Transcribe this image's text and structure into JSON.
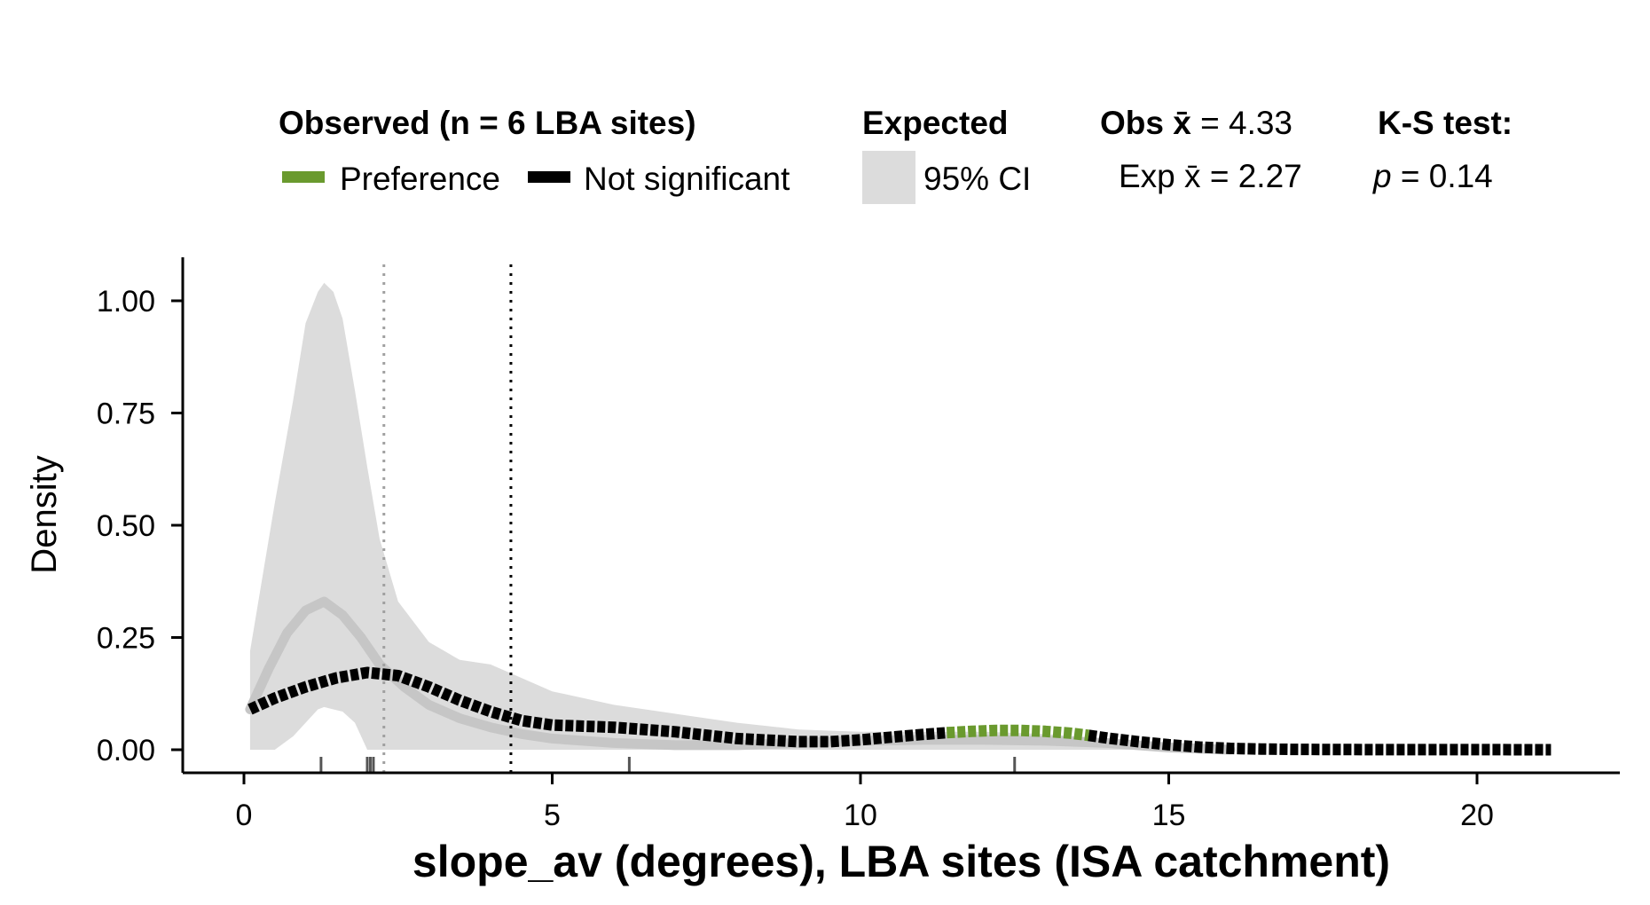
{
  "chart_data": {
    "type": "area",
    "xlabel": "slope_av (degrees), LBA sites (ISA catchment)",
    "ylabel": "Density",
    "xlim": [
      -1,
      22.5
    ],
    "ylim": [
      -0.05,
      1.1
    ],
    "x_ticks": [
      "0",
      "5",
      "10",
      "15",
      "20"
    ],
    "y_ticks": [
      "0.00",
      "0.25",
      "0.50",
      "0.75",
      "1.00"
    ],
    "grid": false,
    "legend_position": "top",
    "legend": {
      "observed_title": "Observed (n = 6 LBA sites)",
      "preference_label": "Preference",
      "not_significant_label": "Not significant",
      "expected_title": "Expected",
      "ci_label": "95% CI",
      "obs_mean_prefix": "Obs ",
      "obs_mean_symbol": "x̄",
      "obs_mean_value": " = 4.33",
      "exp_mean_prefix": "Exp ",
      "exp_mean_symbol": "x̄",
      "exp_mean_value": " = 2.27",
      "ks_title": "K-S test:",
      "ks_p_symbol": "p",
      "ks_p_value": " = 0.14"
    },
    "means": {
      "observed": 4.33,
      "expected": 2.27
    },
    "colors": {
      "preference": "#6a9a2e",
      "not_significant": "#000000",
      "ci_fill": "#dcdcdc",
      "expected_line": "#c6c6c6",
      "obs_mean_line": "#000000",
      "exp_mean_line": "#a0a0a0"
    },
    "rug_observed": [
      1.25,
      2.0,
      2.05,
      2.1,
      6.25,
      12.5
    ],
    "ci_band": {
      "x": [
        0.1,
        0.5,
        0.8,
        1.0,
        1.2,
        1.3,
        1.45,
        1.6,
        1.8,
        2.0,
        2.2,
        2.5,
        3.0,
        3.5,
        4.0,
        5.0,
        6.0,
        7.0,
        8.0,
        9.0,
        10.0,
        11.0,
        12.0,
        13.0,
        14.0,
        15.0,
        16.0
      ],
      "upper": [
        0.22,
        0.55,
        0.78,
        0.95,
        1.02,
        1.04,
        1.02,
        0.96,
        0.8,
        0.63,
        0.47,
        0.33,
        0.24,
        0.2,
        0.19,
        0.13,
        0.1,
        0.08,
        0.06,
        0.045,
        0.04,
        0.04,
        0.04,
        0.035,
        0.025,
        0.01,
        0.0
      ],
      "lower": [
        0.0,
        0.0,
        0.03,
        0.06,
        0.09,
        0.095,
        0.09,
        0.085,
        0.06,
        0.0,
        0.0,
        0.0,
        0.0,
        0.0,
        0.0,
        0.0,
        0.0,
        0.0,
        0.0,
        0.0,
        0.0,
        0.0,
        0.0,
        0.0,
        0.0,
        0.0,
        0.0
      ]
    },
    "expected_line": {
      "x": [
        0.1,
        0.4,
        0.7,
        1.0,
        1.3,
        1.6,
        1.9,
        2.2,
        2.6,
        3.0,
        3.5,
        4.0,
        4.5,
        5.0,
        6.0,
        7.0,
        8.0,
        9.0,
        10.0,
        11.0,
        12.0,
        13.0,
        14.0,
        15.0,
        16.0
      ],
      "y": [
        0.09,
        0.18,
        0.26,
        0.31,
        0.33,
        0.3,
        0.25,
        0.19,
        0.14,
        0.1,
        0.07,
        0.05,
        0.035,
        0.025,
        0.015,
        0.01,
        0.01,
        0.015,
        0.02,
        0.022,
        0.022,
        0.02,
        0.015,
        0.005,
        0.0
      ]
    },
    "series": [
      {
        "name": "Not significant",
        "x": [
          0.1,
          0.5,
          1.0,
          1.5,
          2.0,
          2.5,
          3.0,
          3.5,
          4.0,
          4.5,
          5.0,
          6.0,
          7.0,
          8.0,
          9.0,
          9.5,
          10.0,
          10.5,
          11.0,
          11.4
        ],
        "y": [
          0.09,
          0.115,
          0.14,
          0.16,
          0.172,
          0.165,
          0.14,
          0.11,
          0.085,
          0.065,
          0.055,
          0.05,
          0.04,
          0.025,
          0.018,
          0.018,
          0.022,
          0.028,
          0.034,
          0.038
        ]
      },
      {
        "name": "Preference",
        "x": [
          11.4,
          11.8,
          12.2,
          12.6,
          13.0,
          13.4,
          13.7
        ],
        "y": [
          0.038,
          0.041,
          0.043,
          0.043,
          0.041,
          0.037,
          0.032
        ]
      },
      {
        "name": "Not significant",
        "x": [
          13.7,
          14.0,
          14.5,
          15.0,
          15.5,
          16.0,
          16.5,
          17.0,
          18.0,
          19.0,
          20.0,
          21.2
        ],
        "y": [
          0.032,
          0.026,
          0.018,
          0.011,
          0.006,
          0.003,
          0.0015,
          0.0008,
          0.0004,
          0.0002,
          0.0001,
          0.0
        ]
      }
    ]
  }
}
